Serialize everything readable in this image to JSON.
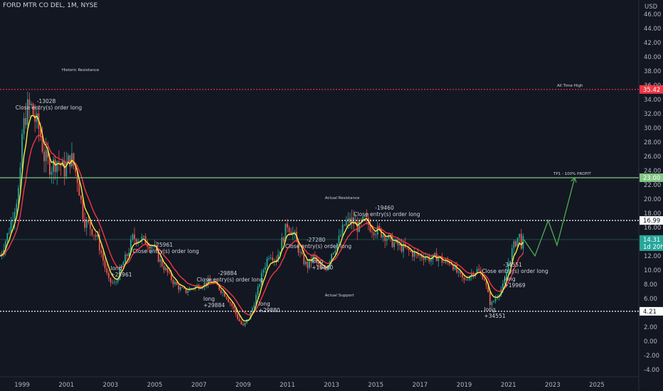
{
  "header": {
    "symbol": "FORD MTR CO DEL",
    "interval": "1M",
    "exchange": "NYSE"
  },
  "currency": "USD",
  "chart_data": {
    "type": "candlestick",
    "y_range": [
      -4,
      46
    ],
    "y_ticks": [
      "-4.00",
      "-2.00",
      "0.00",
      "2.00",
      "4.00",
      "6.00",
      "8.00",
      "10.00",
      "12.00",
      "14.00",
      "16.00",
      "18.00",
      "20.00",
      "22.00",
      "24.00",
      "26.00",
      "28.00",
      "30.00",
      "32.00",
      "34.00",
      "36.00",
      "38.00",
      "40.00",
      "42.00",
      "44.00",
      "46.00"
    ],
    "x_ticks": [
      "1999",
      "2001",
      "2003",
      "2005",
      "2007",
      "2009",
      "2011",
      "2013",
      "2015",
      "2017",
      "2019",
      "2021",
      "2023",
      "2025"
    ],
    "price_path": [
      [
        1998.0,
        12.0
      ],
      [
        1998.4,
        15.5
      ],
      [
        1998.9,
        22.0
      ],
      [
        1999.0,
        29.0
      ],
      [
        1999.2,
        32.5
      ],
      [
        1999.4,
        33.0
      ],
      [
        1999.6,
        31.0
      ],
      [
        1999.8,
        29.5
      ],
      [
        2000.0,
        26.0
      ],
      [
        2000.3,
        24.5
      ],
      [
        2000.6,
        25.5
      ],
      [
        2000.9,
        24.0
      ],
      [
        2001.2,
        26.0
      ],
      [
        2001.5,
        23.0
      ],
      [
        2001.8,
        17.0
      ],
      [
        2002.1,
        16.0
      ],
      [
        2002.4,
        14.5
      ],
      [
        2002.7,
        11.0
      ],
      [
        2002.9,
        8.5
      ],
      [
        2003.2,
        8.0
      ],
      [
        2003.5,
        10.5
      ],
      [
        2003.8,
        12.5
      ],
      [
        2004.0,
        14.5
      ],
      [
        2004.3,
        14.5
      ],
      [
        2004.6,
        14.0
      ],
      [
        2004.9,
        13.5
      ],
      [
        2005.2,
        11.5
      ],
      [
        2005.5,
        10.0
      ],
      [
        2005.8,
        8.5
      ],
      [
        2006.1,
        7.5
      ],
      [
        2006.4,
        7.0
      ],
      [
        2006.7,
        7.5
      ],
      [
        2007.0,
        7.8
      ],
      [
        2007.3,
        8.2
      ],
      [
        2007.6,
        8.5
      ],
      [
        2007.9,
        7.5
      ],
      [
        2008.2,
        6.5
      ],
      [
        2008.5,
        5.0
      ],
      [
        2008.8,
        3.0
      ],
      [
        2009.0,
        2.0
      ],
      [
        2009.3,
        3.5
      ],
      [
        2009.6,
        6.5
      ],
      [
        2009.9,
        10.0
      ],
      [
        2010.2,
        12.5
      ],
      [
        2010.5,
        11.5
      ],
      [
        2010.8,
        14.5
      ],
      [
        2011.0,
        16.5
      ],
      [
        2011.3,
        15.0
      ],
      [
        2011.6,
        12.0
      ],
      [
        2011.9,
        10.5
      ],
      [
        2012.2,
        12.0
      ],
      [
        2012.5,
        10.0
      ],
      [
        2012.8,
        10.5
      ],
      [
        2013.0,
        12.5
      ],
      [
        2013.3,
        14.0
      ],
      [
        2013.6,
        16.5
      ],
      [
        2013.9,
        17.0
      ],
      [
        2014.2,
        16.0
      ],
      [
        2014.5,
        17.0
      ],
      [
        2014.8,
        16.0
      ],
      [
        2015.1,
        15.5
      ],
      [
        2015.4,
        15.0
      ],
      [
        2015.7,
        14.0
      ],
      [
        2016.0,
        13.5
      ],
      [
        2016.3,
        13.0
      ],
      [
        2016.6,
        12.5
      ],
      [
        2016.9,
        12.0
      ],
      [
        2017.2,
        12.0
      ],
      [
        2017.5,
        11.5
      ],
      [
        2017.8,
        12.0
      ],
      [
        2018.1,
        11.0
      ],
      [
        2018.4,
        11.2
      ],
      [
        2018.7,
        9.5
      ],
      [
        2019.0,
        8.5
      ],
      [
        2019.3,
        9.5
      ],
      [
        2019.6,
        10.0
      ],
      [
        2019.9,
        9.0
      ],
      [
        2020.2,
        5.0
      ],
      [
        2020.5,
        6.5
      ],
      [
        2020.8,
        8.0
      ],
      [
        2021.0,
        11.0
      ],
      [
        2021.2,
        13.0
      ],
      [
        2021.4,
        14.5
      ],
      [
        2021.5,
        14.8
      ],
      [
        2021.6,
        13.5
      ],
      [
        2021.7,
        14.31
      ]
    ],
    "ema_fast_label": "",
    "ema_slow_label": "",
    "levels": [
      {
        "name": "all-time-high",
        "value": 35.42,
        "label": "All Time High",
        "price_label": "35.42",
        "color": "#f23645",
        "style": "dotted"
      },
      {
        "name": "tp1",
        "value": 23.0,
        "label": "TP1 - 100% PROFIT",
        "price_label": "23.00",
        "color": "#81c784",
        "style": "solid"
      },
      {
        "name": "actual-resistance",
        "value": 16.99,
        "label": "",
        "price_label": "16.99",
        "color": "#ffffff",
        "style": "dotted"
      },
      {
        "name": "actual-support",
        "value": 4.21,
        "label": "",
        "price_label": "4.21",
        "color": "#ffffff",
        "style": "dotted"
      }
    ],
    "current_price": {
      "value": 14.31,
      "label": "14.31",
      "countdown": "1d 20h",
      "color": "#26a69a"
    },
    "zones": [
      {
        "text": "Historic Resistance",
        "x": 2000.8,
        "y": 38.0
      },
      {
        "text": "Actual Resistance",
        "x": 2012.7,
        "y": 20.0
      },
      {
        "text": "Actual Support",
        "x": 2012.7,
        "y": 6.3
      }
    ],
    "trades": [
      {
        "lines": [
          "-13028",
          "Close entry(s) order long"
        ],
        "x": 1998.7,
        "y": 33.5
      },
      {
        "lines": [
          "-25961",
          "Close entry(s) order long"
        ],
        "x": 2004.0,
        "y": 13.3
      },
      {
        "lines": [
          "long",
          "+25961"
        ],
        "x": 2003.0,
        "y": 10.0
      },
      {
        "lines": [
          "-29884",
          "Close entry(s) order long"
        ],
        "x": 2006.9,
        "y": 9.3
      },
      {
        "lines": [
          "long",
          "+29884"
        ],
        "x": 2007.2,
        "y": 5.7
      },
      {
        "lines": [
          "long",
          "+29880"
        ],
        "x": 2009.7,
        "y": 5.0
      },
      {
        "lines": [
          "-27280",
          "Close entry(s) order long"
        ],
        "x": 2010.9,
        "y": 14.0
      },
      {
        "lines": [
          "long",
          "+19460"
        ],
        "x": 2012.1,
        "y": 11.0
      },
      {
        "lines": [
          "-19460",
          "Close entry(s) order long"
        ],
        "x": 2014.0,
        "y": 18.5
      },
      {
        "lines": [
          "-34551",
          "Close entry(s) order long"
        ],
        "x": 2019.8,
        "y": 10.5
      },
      {
        "lines": [
          "long",
          "+34551"
        ],
        "x": 2019.9,
        "y": 4.2
      },
      {
        "lines": [
          "long",
          "+19969"
        ],
        "x": 2020.8,
        "y": 8.5
      }
    ],
    "projection": [
      [
        2021.7,
        14.3
      ],
      [
        2022.2,
        12.0
      ],
      [
        2022.8,
        17.0
      ],
      [
        2023.2,
        13.5
      ],
      [
        2024.0,
        23.0
      ]
    ]
  }
}
